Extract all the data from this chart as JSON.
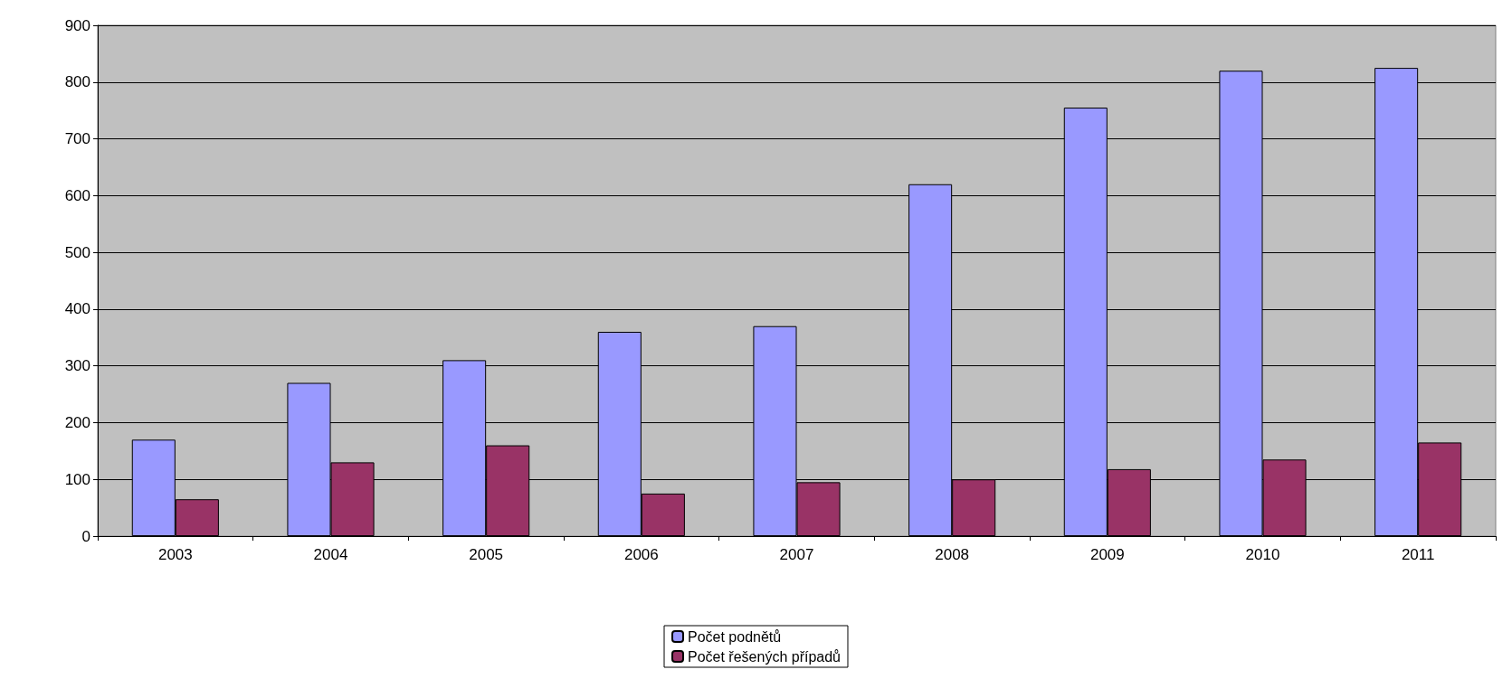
{
  "chart_data": {
    "type": "bar",
    "categories": [
      "2003",
      "2004",
      "2005",
      "2006",
      "2007",
      "2008",
      "2009",
      "2010",
      "2011"
    ],
    "series": [
      {
        "name": "Počet podnětů",
        "color": "#9999ff",
        "values": [
          170,
          270,
          310,
          360,
          370,
          620,
          755,
          820,
          825
        ]
      },
      {
        "name": "Počet řešených případů",
        "color": "#993366",
        "values": [
          65,
          130,
          160,
          75,
          95,
          100,
          118,
          135,
          165
        ]
      }
    ],
    "ylim": [
      0,
      900
    ],
    "yticks": [
      0,
      100,
      200,
      300,
      400,
      500,
      600,
      700,
      800,
      900
    ],
    "grid": "y",
    "legend": "bottom"
  }
}
